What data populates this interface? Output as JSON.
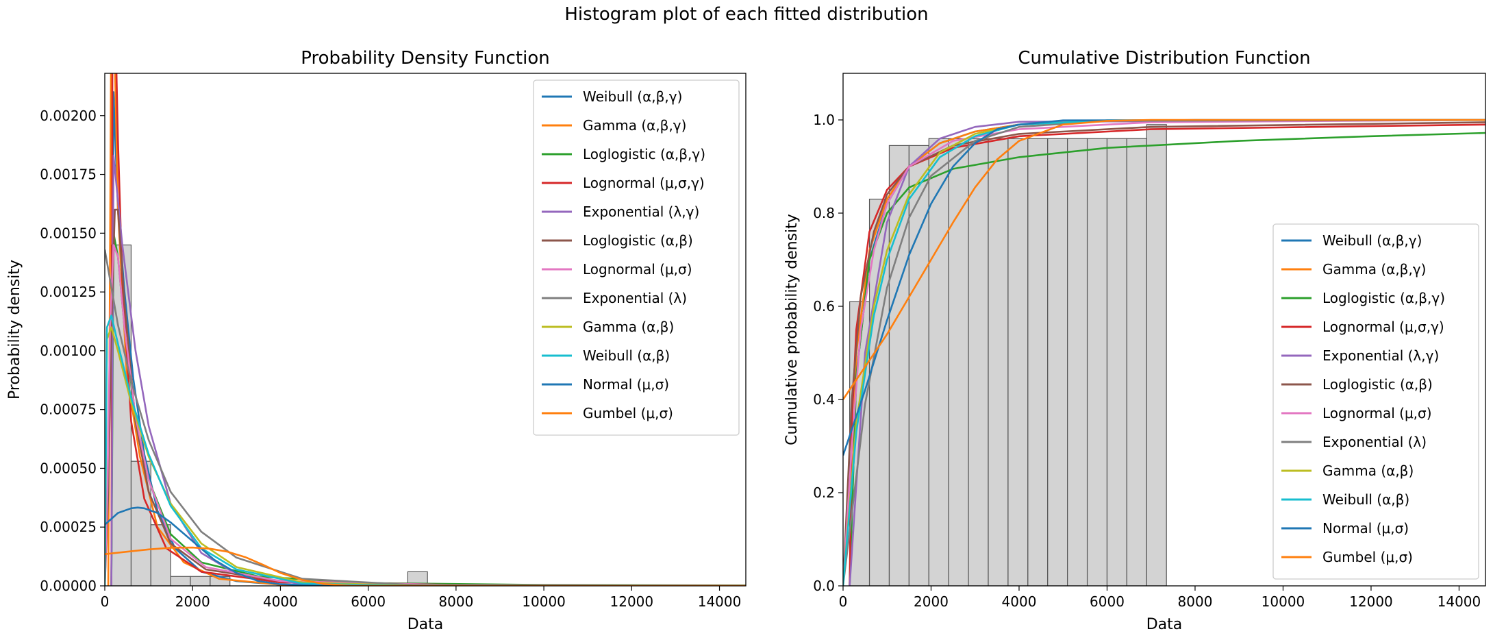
{
  "figure": {
    "suptitle": "Histogram plot of each fitted distribution"
  },
  "legend_entries": [
    {
      "label": "Weibull (α,β,γ)",
      "color": "#1f77b4"
    },
    {
      "label": "Gamma (α,β,γ)",
      "color": "#ff7f0e"
    },
    {
      "label": "Loglogistic (α,β,γ)",
      "color": "#2ca02c"
    },
    {
      "label": "Lognormal (μ,σ,γ)",
      "color": "#d62728"
    },
    {
      "label": "Exponential (λ,γ)",
      "color": "#9467bd"
    },
    {
      "label": "Loglogistic (α,β)",
      "color": "#8c564b"
    },
    {
      "label": "Lognormal (μ,σ)",
      "color": "#e377c2"
    },
    {
      "label": "Exponential (λ)",
      "color": "#7f7f7f"
    },
    {
      "label": "Gamma (α,β)",
      "color": "#bcbd22"
    },
    {
      "label": "Weibull (α,β)",
      "color": "#17becf"
    },
    {
      "label": "Normal (μ,σ)",
      "color": "#1f77b4"
    },
    {
      "label": "Gumbel (μ,σ)",
      "color": "#ff7f0e"
    }
  ],
  "chart_data": [
    {
      "type": "line",
      "title": "Probability Density Function",
      "xlabel": "Data",
      "ylabel": "Probability density",
      "xlim": [
        0,
        14600
      ],
      "ylim": [
        0,
        0.00218
      ],
      "xticks": [
        0,
        2000,
        4000,
        6000,
        8000,
        10000,
        12000,
        14000
      ],
      "yticks": [
        0.0,
        0.00025,
        0.0005,
        0.00075,
        0.001,
        0.00125,
        0.0015,
        0.00175,
        0.002
      ],
      "ytick_labels": [
        "0.00000",
        "0.00025",
        "0.00050",
        "0.00075",
        "0.00100",
        "0.00125",
        "0.00150",
        "0.00175",
        "0.00200"
      ],
      "legend_position": "upper right",
      "histogram": {
        "bin_edges": [
          150,
          600,
          1050,
          1500,
          1950,
          2400,
          2850,
          3300,
          3750,
          4200,
          4650,
          5100,
          5550,
          6000,
          6450,
          6900,
          7350
        ],
        "counts": [
          0.00145,
          0.00053,
          0.00026,
          4e-05,
          4e-05,
          4e-05,
          0.0,
          0.0,
          0.0,
          0.0,
          0.0,
          0.0,
          0.0,
          0.0,
          0.0,
          6e-05
        ]
      },
      "series": [
        {
          "name": "Weibull (α,β,γ)",
          "x": [
            150,
            200,
            300,
            450,
            650,
            900,
            1200,
            1600,
            2200,
            3000,
            4000,
            6000,
            14600
          ],
          "y": [
            0.0,
            0.0021,
            0.0016,
            0.00125,
            0.00088,
            0.00056,
            0.00032,
            0.00016,
            6e-05,
            2e-05,
            5e-06,
            0.0,
            0.0
          ]
        },
        {
          "name": "Gamma (α,β,γ)",
          "x": [
            80,
            150,
            200,
            300,
            500,
            800,
            1200,
            1800,
            2600,
            4000,
            6000,
            14600
          ],
          "y": [
            0.0,
            0.0025,
            0.0025,
            0.0016,
            0.0009,
            0.00055,
            0.00025,
            0.0001,
            3e-05,
            5e-06,
            0.0,
            0.0
          ]
        },
        {
          "name": "Loglogistic (α,β,γ)",
          "x": [
            150,
            200,
            300,
            450,
            700,
            1000,
            1500,
            2200,
            3500,
            6000,
            10000,
            14600
          ],
          "y": [
            0.0,
            0.0015,
            0.0014,
            0.0011,
            0.0007,
            0.00045,
            0.00022,
            0.0001,
            4e-05,
            1.2e-05,
            4e-06,
            2e-06
          ]
        },
        {
          "name": "Lognormal (μ,σ,γ)",
          "x": [
            150,
            175,
            200,
            240,
            300,
            400,
            600,
            900,
            1400,
            2200,
            4000,
            8000,
            14600
          ],
          "y": [
            0.0,
            0.0023,
            0.0025,
            0.0024,
            0.0019,
            0.0013,
            0.0007,
            0.00037,
            0.00016,
            6e-05,
            1.5e-05,
            3e-06,
            1e-06
          ]
        },
        {
          "name": "Exponential (λ,γ)",
          "x": [
            150,
            200,
            400,
            700,
            1000,
            1500,
            2200,
            3000,
            4500,
            14600
          ],
          "y": [
            0.0,
            0.00183,
            0.00145,
            0.001,
            0.00068,
            0.00035,
            0.00014,
            5e-05,
            7e-06,
            0.0
          ]
        },
        {
          "name": "Loglogistic (α,β)",
          "x": [
            0,
            80,
            150,
            230,
            300,
            450,
            700,
            1000,
            1500,
            2300,
            4000,
            8000,
            14600
          ],
          "y": [
            0.0,
            0.0004,
            0.0011,
            0.0016,
            0.0016,
            0.0012,
            0.0007,
            0.0004,
            0.00018,
            7e-05,
            2e-05,
            4e-06,
            1e-06
          ]
        },
        {
          "name": "Lognormal (μ,σ)",
          "x": [
            0,
            60,
            120,
            200,
            300,
            450,
            700,
            1000,
            1500,
            2300,
            4000,
            8000,
            14600
          ],
          "y": [
            0.0,
            0.0004,
            0.0011,
            0.00145,
            0.0014,
            0.0011,
            0.00072,
            0.00045,
            0.0002,
            8e-05,
            2e-05,
            3e-06,
            0.0
          ]
        },
        {
          "name": "Exponential (λ)",
          "x": [
            0,
            300,
            600,
            1000,
            1500,
            2200,
            3000,
            4500,
            7000,
            14600
          ],
          "y": [
            0.00143,
            0.00111,
            0.00087,
            0.00062,
            0.0004,
            0.00023,
            0.00012,
            3e-05,
            4e-06,
            0.0
          ]
        },
        {
          "name": "Gamma (α,β)",
          "x": [
            0,
            50,
            150,
            300,
            600,
            1000,
            1500,
            2200,
            3000,
            4500,
            7000,
            14600
          ],
          "y": [
            0.0,
            0.00105,
            0.0011,
            0.001,
            0.00078,
            0.00055,
            0.00035,
            0.00018,
            8e-05,
            1.5e-05,
            1e-06,
            0.0
          ]
        },
        {
          "name": "Weibull (α,β)",
          "x": [
            0,
            50,
            150,
            300,
            600,
            1000,
            1500,
            2200,
            3000,
            4500,
            7000,
            14600
          ],
          "y": [
            0.0,
            0.0011,
            0.00115,
            0.00103,
            0.0008,
            0.00056,
            0.00034,
            0.00016,
            7e-05,
            1e-05,
            0.0,
            0.0
          ]
        },
        {
          "name": "Normal (μ,σ)",
          "x": [
            0,
            300,
            600,
            750,
            900,
            1200,
            1500,
            2000,
            2500,
            3000,
            3500,
            4000,
            5000,
            14600
          ],
          "y": [
            0.00026,
            0.00031,
            0.00033,
            0.000333,
            0.00033,
            0.00031,
            0.00027,
            0.00019,
            0.00011,
            5.5e-05,
            2e-05,
            7e-06,
            0.0,
            0.0
          ]
        },
        {
          "name": "Gumbel (μ,σ)",
          "x": [
            0,
            500,
            1000,
            1500,
            2000,
            2400,
            2800,
            3200,
            3600,
            4000,
            4500,
            5000,
            5600,
            6200,
            14600
          ],
          "y": [
            0.000135,
            0.000145,
            0.000155,
            0.000162,
            0.000163,
            0.000158,
            0.000145,
            0.000122,
            9e-05,
            5.5e-05,
            2.5e-05,
            8e-06,
            1e-06,
            0.0,
            0.0
          ]
        }
      ]
    },
    {
      "type": "line",
      "title": "Cumulative Distribution Function",
      "xlabel": "Data",
      "ylabel": "Cumulative probability density",
      "xlim": [
        0,
        14600
      ],
      "ylim": [
        0,
        1.1
      ],
      "xticks": [
        0,
        2000,
        4000,
        6000,
        8000,
        10000,
        12000,
        14000
      ],
      "yticks": [
        0.0,
        0.2,
        0.4,
        0.6,
        0.8,
        1.0
      ],
      "ytick_labels": [
        "0.0",
        "0.2",
        "0.4",
        "0.6",
        "0.8",
        "1.0"
      ],
      "legend_position": "lower right",
      "histogram": {
        "bin_edges": [
          150,
          600,
          1050,
          1500,
          1950,
          2400,
          2850,
          3300,
          3750,
          4200,
          4650,
          5100,
          5550,
          6000,
          6450,
          6900,
          7350
        ],
        "counts": [
          0.61,
          0.83,
          0.945,
          0.945,
          0.96,
          0.96,
          0.96,
          0.96,
          0.96,
          0.96,
          0.96,
          0.96,
          0.96,
          0.96,
          0.96,
          0.99
        ]
      },
      "series": [
        {
          "name": "Weibull (α,β,γ)",
          "x": [
            150,
            300,
            600,
            1000,
            1500,
            2200,
            3000,
            4000,
            5500,
            8000,
            14600
          ],
          "y": [
            0.0,
            0.45,
            0.7,
            0.82,
            0.9,
            0.95,
            0.975,
            0.99,
            0.996,
            1.0,
            1.0
          ]
        },
        {
          "name": "Gamma (α,β,γ)",
          "x": [
            150,
            300,
            600,
            1000,
            1500,
            2200,
            3000,
            4000,
            6000,
            14600
          ],
          "y": [
            0.0,
            0.5,
            0.72,
            0.83,
            0.9,
            0.95,
            0.975,
            0.99,
            0.998,
            1.0
          ]
        },
        {
          "name": "Loglogistic (α,β,γ)",
          "x": [
            150,
            300,
            600,
            1000,
            1500,
            2500,
            4000,
            6000,
            9000,
            12000,
            14600
          ],
          "y": [
            0.0,
            0.45,
            0.7,
            0.8,
            0.855,
            0.895,
            0.92,
            0.94,
            0.955,
            0.965,
            0.972
          ]
        },
        {
          "name": "Lognormal (μ,σ,γ)",
          "x": [
            150,
            200,
            300,
            600,
            1000,
            1500,
            2500,
            4000,
            7000,
            14600
          ],
          "y": [
            0.0,
            0.35,
            0.55,
            0.76,
            0.85,
            0.9,
            0.94,
            0.965,
            0.98,
            0.99
          ]
        },
        {
          "name": "Exponential (λ,γ)",
          "x": [
            150,
            500,
            1000,
            1500,
            2200,
            3000,
            4000,
            14600
          ],
          "y": [
            0.0,
            0.5,
            0.78,
            0.9,
            0.96,
            0.985,
            0.996,
            1.0
          ]
        },
        {
          "name": "Loglogistic (α,β)",
          "x": [
            0,
            200,
            400,
            700,
            1000,
            1500,
            2500,
            4000,
            7000,
            14600
          ],
          "y": [
            0.0,
            0.4,
            0.62,
            0.76,
            0.84,
            0.9,
            0.945,
            0.97,
            0.985,
            0.995
          ]
        },
        {
          "name": "Lognormal (μ,σ)",
          "x": [
            0,
            200,
            400,
            700,
            1000,
            1500,
            2500,
            4000,
            7000,
            14600
          ],
          "y": [
            0.0,
            0.3,
            0.55,
            0.72,
            0.82,
            0.9,
            0.955,
            0.98,
            0.995,
            1.0
          ]
        },
        {
          "name": "Exponential (λ)",
          "x": [
            0,
            500,
            1000,
            1500,
            2000,
            3000,
            4000,
            6000,
            14600
          ],
          "y": [
            0.0,
            0.39,
            0.64,
            0.79,
            0.88,
            0.955,
            0.985,
            0.998,
            1.0
          ]
        },
        {
          "name": "Gamma (α,β)",
          "x": [
            0,
            300,
            700,
            1000,
            1500,
            2200,
            3000,
            4000,
            6000,
            14600
          ],
          "y": [
            0.0,
            0.35,
            0.6,
            0.72,
            0.84,
            0.93,
            0.97,
            0.99,
            0.999,
            1.0
          ]
        },
        {
          "name": "Weibull (α,β)",
          "x": [
            0,
            300,
            700,
            1000,
            1500,
            2200,
            3000,
            4000,
            6000,
            14600
          ],
          "y": [
            0.0,
            0.33,
            0.58,
            0.7,
            0.83,
            0.92,
            0.965,
            0.99,
            0.999,
            1.0
          ]
        },
        {
          "name": "Normal (μ,σ)",
          "x": [
            0,
            500,
            1000,
            1500,
            2000,
            2500,
            3000,
            3500,
            4000,
            5000,
            14600
          ],
          "y": [
            0.28,
            0.42,
            0.57,
            0.71,
            0.82,
            0.9,
            0.95,
            0.98,
            0.99,
            0.999,
            1.0
          ]
        },
        {
          "name": "Gumbel (μ,σ)",
          "x": [
            0,
            500,
            1000,
            1500,
            2000,
            2500,
            3000,
            3500,
            4000,
            5000,
            6000,
            7000,
            14600
          ],
          "y": [
            0.4,
            0.47,
            0.54,
            0.62,
            0.7,
            0.78,
            0.855,
            0.915,
            0.955,
            0.99,
            0.998,
            1.0,
            1.0
          ]
        }
      ]
    }
  ]
}
